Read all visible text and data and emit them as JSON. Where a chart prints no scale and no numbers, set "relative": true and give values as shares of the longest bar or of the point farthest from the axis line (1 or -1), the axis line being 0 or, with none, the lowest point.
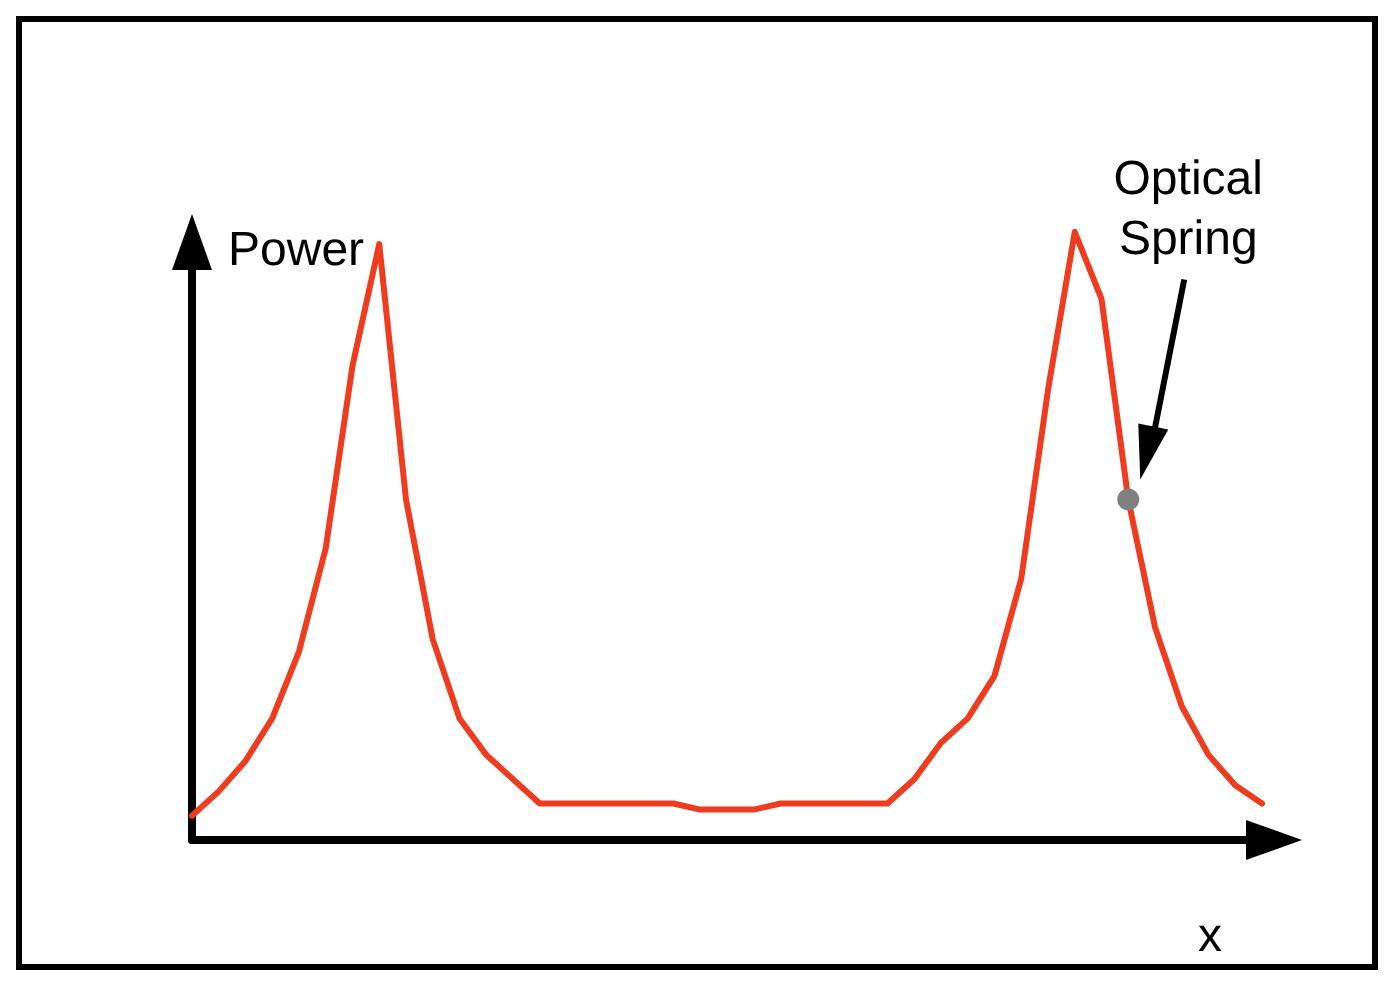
{
  "chart_data": {
    "type": "line",
    "relative": true,
    "xlabel": "x",
    "ylabel": "Power",
    "grid": false,
    "marker": "none",
    "line_style": "solid",
    "categories": [
      null,
      null,
      null,
      null,
      null,
      null,
      null,
      null,
      null,
      null,
      null,
      null,
      null,
      null,
      null,
      null,
      null,
      null,
      null,
      null,
      null,
      null,
      null,
      null,
      null,
      null,
      null,
      null,
      null,
      null,
      null,
      null,
      null,
      null,
      null,
      null,
      null,
      null,
      null,
      null,
      null
    ],
    "series": [
      {
        "color": "#f03c1e",
        "values": [
          0.04,
          0.08,
          0.13,
          0.2,
          0.31,
          0.48,
          0.78,
          0.98,
          0.56,
          0.33,
          0.2,
          0.14,
          0.1,
          0.06,
          0.06,
          0.06,
          0.06,
          0.06,
          0.06,
          0.05,
          0.05,
          0.05,
          0.06,
          0.06,
          0.06,
          0.06,
          0.06,
          0.1,
          0.16,
          0.2,
          0.27,
          0.43,
          0.74,
          1.0,
          0.89,
          0.56,
          0.35,
          0.22,
          0.14,
          0.09,
          0.06
        ]
      }
    ],
    "annotations": [
      "Optical Spring"
    ]
  }
}
